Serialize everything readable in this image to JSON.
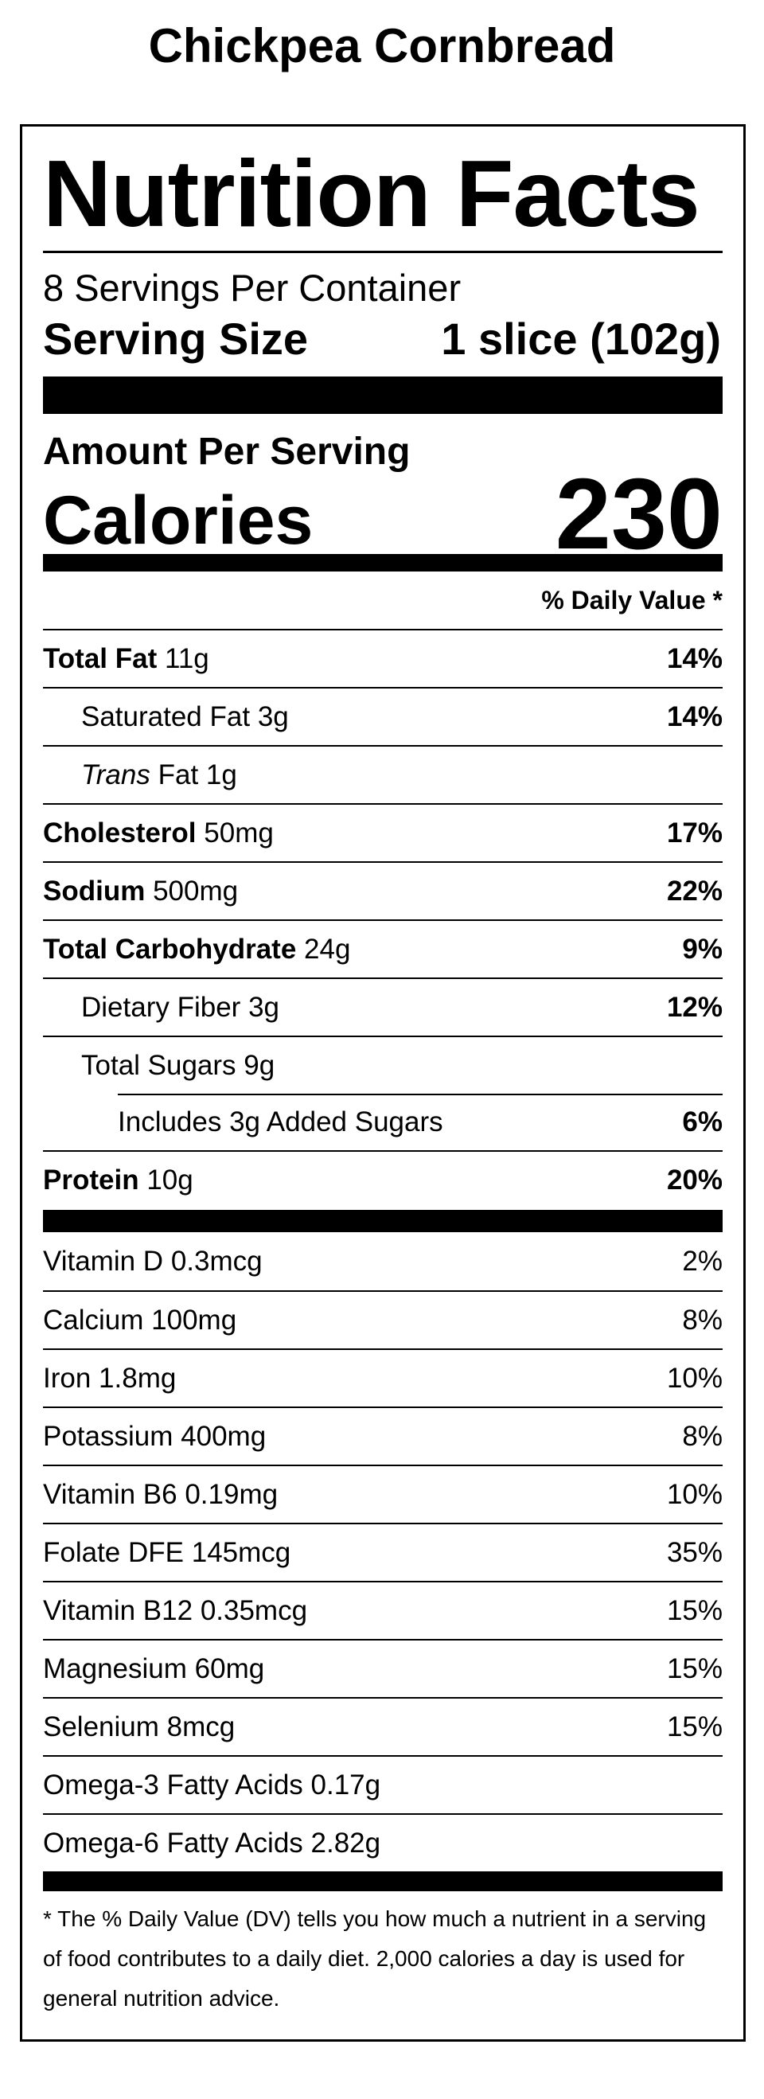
{
  "title": "Chickpea Cornbread",
  "label": {
    "heading": "Nutrition Facts",
    "servings": "8 Servings Per Container",
    "serving_size_label": "Serving Size",
    "serving_size": "1 slice (102g)",
    "amount_per_serving": "Amount Per Serving",
    "calories_label": "Calories",
    "calories": 230,
    "daily_value_header": "% Daily Value *",
    "nutrients": [
      {
        "name": "Total Fat",
        "amount": "11g",
        "dv": "14%"
      },
      {
        "name": "Saturated Fat",
        "amount": "3g",
        "dv": "14%"
      },
      {
        "name_italic": "Trans",
        "name": "Fat",
        "amount": "1g"
      },
      {
        "name": "Cholesterol",
        "amount": "50mg",
        "dv": "17%"
      },
      {
        "name": "Sodium",
        "amount": "500mg",
        "dv": "22%"
      },
      {
        "name": "Total Carbohydrate",
        "amount": "24g",
        "dv": "9%"
      },
      {
        "name": "Dietary Fiber",
        "amount": "3g",
        "dv": "12%"
      },
      {
        "name": "Total Sugars",
        "amount": "9g"
      },
      {
        "name": "Includes 3g Added Sugars",
        "dv": "6%"
      },
      {
        "name": "Protein",
        "amount": "10g",
        "dv": "20%"
      }
    ],
    "vitamins": [
      {
        "name": "Vitamin D",
        "amount": "0.3mcg",
        "dv": "2%"
      },
      {
        "name": "Calcium",
        "amount": "100mg",
        "dv": "8%"
      },
      {
        "name": "Iron",
        "amount": "1.8mg",
        "dv": "10%"
      },
      {
        "name": "Potassium",
        "amount": "400mg",
        "dv": "8%"
      },
      {
        "name": "Vitamin B6",
        "amount": "0.19mg",
        "dv": "10%"
      },
      {
        "name": "Folate DFE",
        "amount": "145mcg",
        "dv": "35%"
      },
      {
        "name": "Vitamin B12",
        "amount": "0.35mcg",
        "dv": "15%"
      },
      {
        "name": "Magnesium",
        "amount": "60mg",
        "dv": "15%"
      },
      {
        "name": "Selenium",
        "amount": "8mcg",
        "dv": "15%"
      },
      {
        "name": "Omega-3 Fatty Acids",
        "amount": "0.17g"
      },
      {
        "name": "Omega-6 Fatty Acids",
        "amount": "2.82g"
      }
    ],
    "footnote": "* The % Daily Value (DV) tells you how much a nutrient in a serving of food contributes to a daily diet. 2,000 calories a day is used for general nutrition advice."
  }
}
